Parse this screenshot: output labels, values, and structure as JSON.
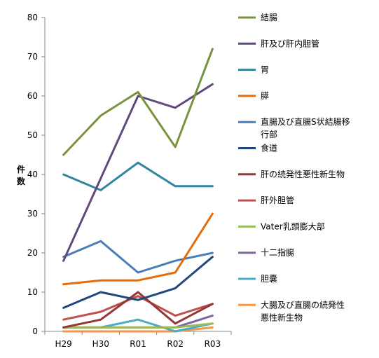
{
  "chart_data": {
    "type": "line",
    "ylabel": "件数",
    "categories": [
      "H29",
      "H30",
      "R01",
      "R02",
      "R03"
    ],
    "ylim": [
      0,
      80
    ],
    "yticks": [
      "0",
      "10",
      "20",
      "30",
      "40",
      "50",
      "60",
      "70",
      "80"
    ],
    "grid": false,
    "legend_position": "right",
    "series": [
      {
        "name": "結腸",
        "color": "#77933C",
        "values": [
          45,
          55,
          61,
          47,
          72
        ]
      },
      {
        "name": "肝及び肝内胆管",
        "color": "#604A7B",
        "values": [
          18,
          39,
          60,
          57,
          63
        ]
      },
      {
        "name": "胃",
        "color": "#31859C",
        "values": [
          40,
          36,
          43,
          37,
          37
        ]
      },
      {
        "name": "膵",
        "color": "#E46C0A",
        "values": [
          12,
          13,
          13,
          15,
          30
        ]
      },
      {
        "name": "直腸及び直腸S状結腸移行部",
        "color": "#4A7EBB",
        "values": [
          19,
          23,
          15,
          18,
          20
        ]
      },
      {
        "name": "食道",
        "color": "#1F497D",
        "values": [
          6,
          10,
          8,
          11,
          19
        ]
      },
      {
        "name": "肝の続発性悪性新生物",
        "color": "#953735",
        "values": [
          1,
          3,
          10,
          2,
          7
        ]
      },
      {
        "name": "肝外胆管",
        "color": "#C0504D",
        "values": [
          3,
          5,
          9,
          4,
          7
        ]
      },
      {
        "name": "Vater乳頭膨大部",
        "color": "#9BBB59",
        "values": [
          1,
          1,
          1,
          1,
          2
        ]
      },
      {
        "name": "十二指腸",
        "color": "#8064A2",
        "values": [
          1,
          1,
          1,
          1,
          4
        ]
      },
      {
        "name": "胆嚢",
        "color": "#4BACC6",
        "values": [
          1,
          1,
          3,
          0,
          2
        ]
      },
      {
        "name": "大腸及び直腸の続発性悪性新生物",
        "color": "#F79646",
        "values": [
          0,
          0,
          0,
          0,
          1
        ]
      }
    ],
    "legend_labels": [
      [
        "結腸"
      ],
      [
        "肝及び肝内胆管"
      ],
      [
        "胃"
      ],
      [
        "膵"
      ],
      [
        "直腸及び直腸S状結腸移",
        "行部"
      ],
      [
        "食道"
      ],
      [
        "肝の続発性悪性新生物"
      ],
      [
        "肝外胆管"
      ],
      [
        "Vater乳頭膨大部"
      ],
      [
        "十二指腸"
      ],
      [
        "胆嚢"
      ],
      [
        "大腸及び直腸の続発性",
        "悪性新生物"
      ]
    ]
  }
}
